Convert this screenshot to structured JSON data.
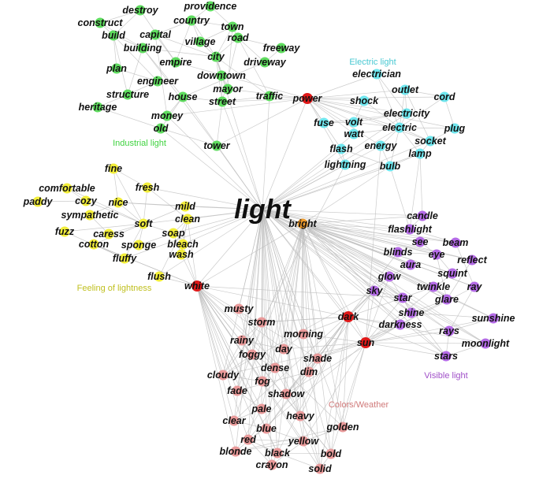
{
  "graph": {
    "center": {
      "label": "light",
      "color": "#ffffff"
    },
    "palette": {
      "urban": "#5fdc5f",
      "electric": "#6fe6ee",
      "lightness": "#f2ee3a",
      "visible": "#b46be6",
      "weather": "#e99a9a",
      "hub": "#e01818",
      "bright": "#ee9a2a"
    },
    "groups": [
      {
        "label": "Electric light",
        "color": "#48c8d2"
      },
      {
        "label": "Industrial light",
        "color": "#3fd23f"
      },
      {
        "label": "Feeling of lightness",
        "color": "#c0c020"
      },
      {
        "label": "Visible light",
        "color": "#a04fc8"
      },
      {
        "label": "Colors/Weather",
        "color": "#d07a7a"
      }
    ],
    "nodes": [
      {
        "id": "destroy",
        "label": "destroy",
        "cat": "urban"
      },
      {
        "id": "providence",
        "label": "providence",
        "cat": "urban"
      },
      {
        "id": "construct",
        "label": "construct",
        "cat": "urban"
      },
      {
        "id": "country",
        "label": "country",
        "cat": "urban"
      },
      {
        "id": "town",
        "label": "town",
        "cat": "urban"
      },
      {
        "id": "build",
        "label": "build",
        "cat": "urban"
      },
      {
        "id": "capital",
        "label": "capital",
        "cat": "urban"
      },
      {
        "id": "village",
        "label": "village",
        "cat": "urban"
      },
      {
        "id": "road",
        "label": "road",
        "cat": "urban"
      },
      {
        "id": "building",
        "label": "building",
        "cat": "urban"
      },
      {
        "id": "freeway",
        "label": "freeway",
        "cat": "urban"
      },
      {
        "id": "city",
        "label": "city",
        "cat": "urban"
      },
      {
        "id": "empire",
        "label": "empire",
        "cat": "urban"
      },
      {
        "id": "driveway",
        "label": "driveway",
        "cat": "urban"
      },
      {
        "id": "plan",
        "label": "plan",
        "cat": "urban"
      },
      {
        "id": "downtown",
        "label": "downtown",
        "cat": "urban"
      },
      {
        "id": "engineer",
        "label": "engineer",
        "cat": "urban"
      },
      {
        "id": "mayor",
        "label": "mayor",
        "cat": "urban"
      },
      {
        "id": "structure",
        "label": "structure",
        "cat": "urban"
      },
      {
        "id": "house",
        "label": "house",
        "cat": "urban"
      },
      {
        "id": "traffic",
        "label": "traffic",
        "cat": "urban"
      },
      {
        "id": "street",
        "label": "street",
        "cat": "urban"
      },
      {
        "id": "heritage",
        "label": "heritage",
        "cat": "urban"
      },
      {
        "id": "money",
        "label": "money",
        "cat": "urban"
      },
      {
        "id": "old",
        "label": "old",
        "cat": "urban"
      },
      {
        "id": "tower",
        "label": "tower",
        "cat": "urban"
      },
      {
        "id": "electrician",
        "label": "electrician",
        "cat": "electric"
      },
      {
        "id": "outlet",
        "label": "outlet",
        "cat": "electric"
      },
      {
        "id": "cord",
        "label": "cord",
        "cat": "electric"
      },
      {
        "id": "shock",
        "label": "shock",
        "cat": "electric"
      },
      {
        "id": "electricity",
        "label": "electricity",
        "cat": "electric"
      },
      {
        "id": "fuse",
        "label": "fuse",
        "cat": "electric"
      },
      {
        "id": "volt",
        "label": "volt",
        "cat": "electric"
      },
      {
        "id": "electric",
        "label": "electric",
        "cat": "electric"
      },
      {
        "id": "plug",
        "label": "plug",
        "cat": "electric"
      },
      {
        "id": "watt",
        "label": "watt",
        "cat": "electric"
      },
      {
        "id": "socket",
        "label": "socket",
        "cat": "electric"
      },
      {
        "id": "flash",
        "label": "flash",
        "cat": "electric"
      },
      {
        "id": "energy",
        "label": "energy",
        "cat": "electric"
      },
      {
        "id": "lamp",
        "label": "lamp",
        "cat": "electric"
      },
      {
        "id": "lightning",
        "label": "lightning",
        "cat": "electric"
      },
      {
        "id": "bulb",
        "label": "bulb",
        "cat": "electric"
      },
      {
        "id": "power",
        "label": "power",
        "cat": "hub"
      },
      {
        "id": "fine",
        "label": "fine",
        "cat": "lightness"
      },
      {
        "id": "fresh",
        "label": "fresh",
        "cat": "lightness"
      },
      {
        "id": "comfortable",
        "label": "comfortable",
        "cat": "lightness"
      },
      {
        "id": "cozy",
        "label": "cozy",
        "cat": "lightness"
      },
      {
        "id": "paddy",
        "label": "paddy",
        "cat": "lightness"
      },
      {
        "id": "nice",
        "label": "nice",
        "cat": "lightness"
      },
      {
        "id": "mild",
        "label": "mild",
        "cat": "lightness"
      },
      {
        "id": "clean",
        "label": "clean",
        "cat": "lightness"
      },
      {
        "id": "sympathetic",
        "label": "sympathetic",
        "cat": "lightness"
      },
      {
        "id": "soft",
        "label": "soft",
        "cat": "lightness"
      },
      {
        "id": "fuzz",
        "label": "fuzz",
        "cat": "lightness"
      },
      {
        "id": "caress",
        "label": "caress",
        "cat": "lightness"
      },
      {
        "id": "soap",
        "label": "soap",
        "cat": "lightness"
      },
      {
        "id": "cotton",
        "label": "cotton",
        "cat": "lightness"
      },
      {
        "id": "sponge",
        "label": "sponge",
        "cat": "lightness"
      },
      {
        "id": "bleach",
        "label": "bleach",
        "cat": "lightness"
      },
      {
        "id": "wash",
        "label": "wash",
        "cat": "lightness"
      },
      {
        "id": "fluffy",
        "label": "fluffy",
        "cat": "lightness"
      },
      {
        "id": "flush",
        "label": "flush",
        "cat": "lightness"
      },
      {
        "id": "white",
        "label": "white",
        "cat": "hub"
      },
      {
        "id": "bright",
        "label": "bright",
        "cat": "bright"
      },
      {
        "id": "candle",
        "label": "candle",
        "cat": "visible"
      },
      {
        "id": "flashlight",
        "label": "flashlight",
        "cat": "visible"
      },
      {
        "id": "see",
        "label": "see",
        "cat": "visible"
      },
      {
        "id": "beam",
        "label": "beam",
        "cat": "visible"
      },
      {
        "id": "blinds",
        "label": "blinds",
        "cat": "visible"
      },
      {
        "id": "eye",
        "label": "eye",
        "cat": "visible"
      },
      {
        "id": "reflect",
        "label": "reflect",
        "cat": "visible"
      },
      {
        "id": "aura",
        "label": "aura",
        "cat": "visible"
      },
      {
        "id": "squint",
        "label": "squint",
        "cat": "visible"
      },
      {
        "id": "glow",
        "label": "glow",
        "cat": "visible"
      },
      {
        "id": "twinkle",
        "label": "twinkle",
        "cat": "visible"
      },
      {
        "id": "ray",
        "label": "ray",
        "cat": "visible"
      },
      {
        "id": "sky",
        "label": "sky",
        "cat": "visible"
      },
      {
        "id": "star",
        "label": "star",
        "cat": "visible"
      },
      {
        "id": "glare",
        "label": "glare",
        "cat": "visible"
      },
      {
        "id": "shine",
        "label": "shine",
        "cat": "visible"
      },
      {
        "id": "sunshine",
        "label": "sunshine",
        "cat": "visible"
      },
      {
        "id": "darkness",
        "label": "darkness",
        "cat": "visible"
      },
      {
        "id": "rays",
        "label": "rays",
        "cat": "visible"
      },
      {
        "id": "moonlight",
        "label": "moonlight",
        "cat": "visible"
      },
      {
        "id": "stars",
        "label": "stars",
        "cat": "visible"
      },
      {
        "id": "dark",
        "label": "dark",
        "cat": "hub"
      },
      {
        "id": "sun",
        "label": "sun",
        "cat": "hub"
      },
      {
        "id": "musty",
        "label": "musty",
        "cat": "weather"
      },
      {
        "id": "storm",
        "label": "storm",
        "cat": "weather"
      },
      {
        "id": "morning",
        "label": "morning",
        "cat": "weather"
      },
      {
        "id": "rainy",
        "label": "rainy",
        "cat": "weather"
      },
      {
        "id": "day",
        "label": "day",
        "cat": "weather"
      },
      {
        "id": "foggy",
        "label": "foggy",
        "cat": "weather"
      },
      {
        "id": "shade",
        "label": "shade",
        "cat": "weather"
      },
      {
        "id": "dense",
        "label": "dense",
        "cat": "weather"
      },
      {
        "id": "dim",
        "label": "dim",
        "cat": "weather"
      },
      {
        "id": "cloudy",
        "label": "cloudy",
        "cat": "weather"
      },
      {
        "id": "fog",
        "label": "fog",
        "cat": "weather"
      },
      {
        "id": "fade",
        "label": "fade",
        "cat": "weather"
      },
      {
        "id": "shadow",
        "label": "shadow",
        "cat": "weather"
      },
      {
        "id": "pale",
        "label": "pale",
        "cat": "weather"
      },
      {
        "id": "heavy",
        "label": "heavy",
        "cat": "weather"
      },
      {
        "id": "clear",
        "label": "clear",
        "cat": "weather"
      },
      {
        "id": "blue",
        "label": "blue",
        "cat": "weather"
      },
      {
        "id": "golden",
        "label": "golden",
        "cat": "weather"
      },
      {
        "id": "red",
        "label": "red",
        "cat": "weather"
      },
      {
        "id": "yellow",
        "label": "yellow",
        "cat": "weather"
      },
      {
        "id": "blonde",
        "label": "blonde",
        "cat": "weather"
      },
      {
        "id": "black",
        "label": "black",
        "cat": "weather"
      },
      {
        "id": "bold",
        "label": "bold",
        "cat": "weather"
      },
      {
        "id": "crayon",
        "label": "crayon",
        "cat": "weather"
      },
      {
        "id": "solid",
        "label": "solid",
        "cat": "weather"
      }
    ]
  }
}
